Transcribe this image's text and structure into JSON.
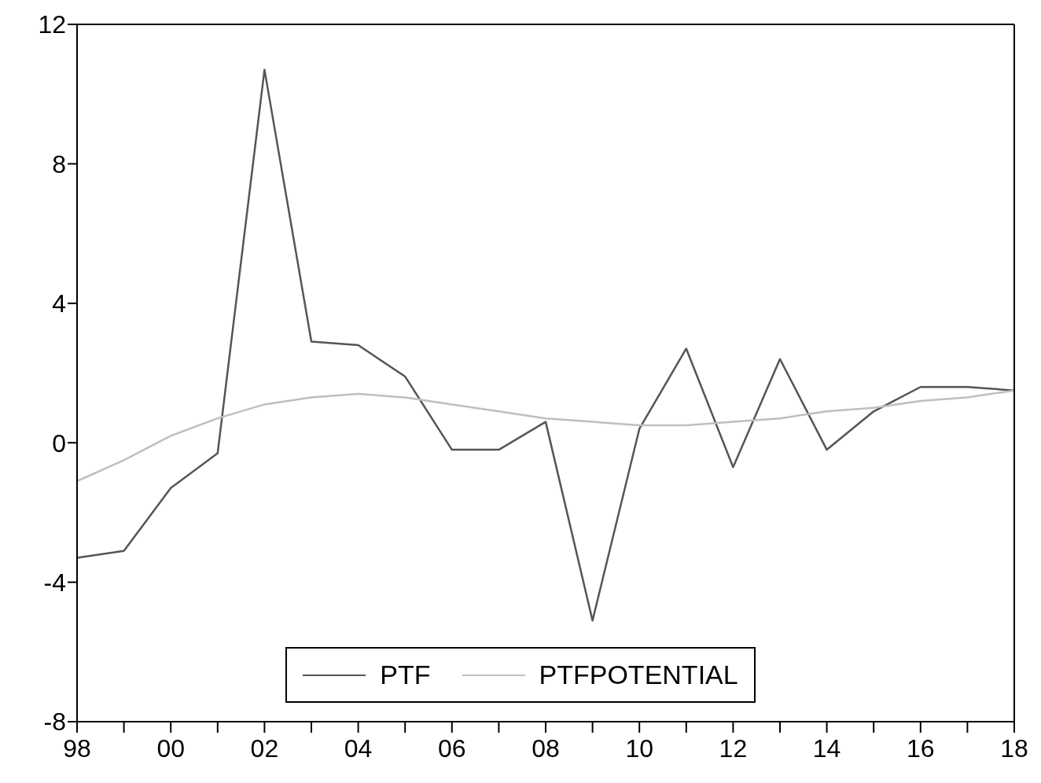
{
  "chart_data": {
    "type": "line",
    "x": [
      1998,
      1999,
      2000,
      2001,
      2002,
      2003,
      2004,
      2005,
      2006,
      2007,
      2008,
      2009,
      2010,
      2011,
      2012,
      2013,
      2014,
      2015,
      2016,
      2017,
      2018
    ],
    "series": [
      {
        "name": "PTF",
        "color": "#555555",
        "values": [
          -3.3,
          -3.1,
          -1.3,
          -0.3,
          10.7,
          2.9,
          2.8,
          1.9,
          -0.2,
          -0.2,
          0.6,
          -5.1,
          0.4,
          2.7,
          -0.7,
          2.4,
          -0.2,
          0.9,
          1.6,
          1.6,
          1.5
        ]
      },
      {
        "name": "PTFPOTENTIAL",
        "color": "#bfbfbf",
        "values": [
          -1.1,
          -0.5,
          0.2,
          0.7,
          1.1,
          1.3,
          1.4,
          1.3,
          1.1,
          0.9,
          0.7,
          0.6,
          0.5,
          0.5,
          0.6,
          0.7,
          0.9,
          1.0,
          1.2,
          1.3,
          1.5
        ]
      }
    ],
    "xlim": [
      1998,
      2018
    ],
    "xticks": [
      {
        "value": 1998,
        "label": "98"
      },
      {
        "value": 1999,
        "label": null
      },
      {
        "value": 2000,
        "label": "00"
      },
      {
        "value": 2001,
        "label": null
      },
      {
        "value": 2002,
        "label": "02"
      },
      {
        "value": 2003,
        "label": null
      },
      {
        "value": 2004,
        "label": "04"
      },
      {
        "value": 2005,
        "label": null
      },
      {
        "value": 2006,
        "label": "06"
      },
      {
        "value": 2007,
        "label": null
      },
      {
        "value": 2008,
        "label": "08"
      },
      {
        "value": 2009,
        "label": null
      },
      {
        "value": 2010,
        "label": "10"
      },
      {
        "value": 2011,
        "label": null
      },
      {
        "value": 2012,
        "label": "12"
      },
      {
        "value": 2013,
        "label": null
      },
      {
        "value": 2014,
        "label": "14"
      },
      {
        "value": 2015,
        "label": null
      },
      {
        "value": 2016,
        "label": "16"
      },
      {
        "value": 2017,
        "label": null
      },
      {
        "value": 2018,
        "label": "18"
      }
    ],
    "ylim": [
      -8,
      12
    ],
    "yticks": [
      -8,
      -4,
      0,
      4,
      8,
      12
    ],
    "grid": false,
    "legend": "bottom",
    "marker": "none",
    "line_style": "solid"
  }
}
